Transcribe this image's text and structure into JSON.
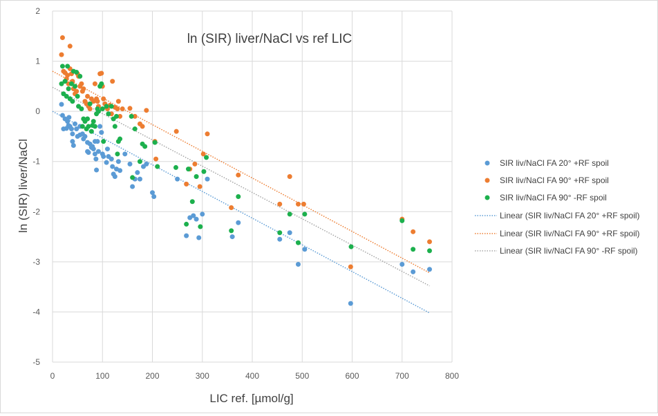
{
  "chart_data": {
    "type": "scatter",
    "title": "ln (SIR) liver/NaCl vs ref LIC",
    "xlabel": "LIC ref. [µmol/g]",
    "ylabel": "ln (SIR) liver/NaCl",
    "xlim": [
      0,
      800
    ],
    "ylim": [
      -5,
      2
    ],
    "x_ticks": [
      "0",
      "100",
      "200",
      "300",
      "400",
      "500",
      "600",
      "700",
      "800"
    ],
    "y_ticks": [
      "2",
      "1",
      "0",
      "-1",
      "-2",
      "-3",
      "-4",
      "-5"
    ],
    "grid": true,
    "legend_position": "right",
    "series": [
      {
        "name": "SIR liv/NaCl FA 20° +RF spoil",
        "color": "#5b9bd5",
        "points": [
          [
            18,
            0.14
          ],
          [
            20,
            -0.08
          ],
          [
            22,
            -0.35
          ],
          [
            25,
            -0.15
          ],
          [
            28,
            -0.34
          ],
          [
            30,
            -0.2
          ],
          [
            32,
            -0.28
          ],
          [
            33,
            -0.12
          ],
          [
            35,
            -0.3
          ],
          [
            38,
            -0.35
          ],
          [
            40,
            -0.45
          ],
          [
            40,
            -0.6
          ],
          [
            42,
            -0.68
          ],
          [
            45,
            -0.25
          ],
          [
            48,
            -0.35
          ],
          [
            50,
            -0.5
          ],
          [
            55,
            -0.47
          ],
          [
            55,
            -0.3
          ],
          [
            60,
            -0.45
          ],
          [
            62,
            -0.55
          ],
          [
            65,
            -0.5
          ],
          [
            70,
            -0.62
          ],
          [
            70,
            -0.8
          ],
          [
            72,
            -0.82
          ],
          [
            75,
            -0.65
          ],
          [
            78,
            -0.72
          ],
          [
            80,
            -0.7
          ],
          [
            82,
            -0.75
          ],
          [
            85,
            -0.6
          ],
          [
            85,
            -0.85
          ],
          [
            87,
            -0.95
          ],
          [
            88,
            -1.17
          ],
          [
            90,
            -0.6
          ],
          [
            92,
            -0.8
          ],
          [
            95,
            -0.3
          ],
          [
            98,
            -0.42
          ],
          [
            100,
            -0.85
          ],
          [
            102,
            -0.9
          ],
          [
            108,
            -1.02
          ],
          [
            110,
            -0.75
          ],
          [
            112,
            -0.9
          ],
          [
            118,
            -0.95
          ],
          [
            120,
            -1.1
          ],
          [
            122,
            -1.25
          ],
          [
            125,
            -1.3
          ],
          [
            128,
            -1.15
          ],
          [
            132,
            -1.0
          ],
          [
            135,
            -1.18
          ],
          [
            145,
            -0.85
          ],
          [
            155,
            -1.05
          ],
          [
            160,
            -1.5
          ],
          [
            165,
            -1.35
          ],
          [
            170,
            -1.22
          ],
          [
            175,
            -1.35
          ],
          [
            182,
            -1.1
          ],
          [
            188,
            -1.05
          ],
          [
            200,
            -1.62
          ],
          [
            203,
            -1.7
          ],
          [
            250,
            -1.35
          ],
          [
            268,
            -2.48
          ],
          [
            275,
            -2.12
          ],
          [
            282,
            -2.08
          ],
          [
            288,
            -2.15
          ],
          [
            293,
            -2.52
          ],
          [
            300,
            -2.05
          ],
          [
            310,
            -1.35
          ],
          [
            360,
            -2.5
          ],
          [
            372,
            -2.22
          ],
          [
            455,
            -2.55
          ],
          [
            475,
            -2.42
          ],
          [
            492,
            -3.05
          ],
          [
            505,
            -2.75
          ],
          [
            597,
            -3.83
          ],
          [
            700,
            -3.05
          ],
          [
            722,
            -3.2
          ],
          [
            755,
            -3.15
          ]
        ]
      },
      {
        "name": "SIR liv/NaCl FA 90° +RF spoil",
        "color": "#ed7d31",
        "points": [
          [
            18,
            1.13
          ],
          [
            20,
            1.47
          ],
          [
            22,
            0.8
          ],
          [
            25,
            0.77
          ],
          [
            28,
            0.65
          ],
          [
            30,
            0.72
          ],
          [
            32,
            0.55
          ],
          [
            35,
            1.3
          ],
          [
            35,
            0.85
          ],
          [
            38,
            0.75
          ],
          [
            40,
            0.6
          ],
          [
            42,
            0.45
          ],
          [
            45,
            0.35
          ],
          [
            48,
            0.4
          ],
          [
            50,
            0.75
          ],
          [
            52,
            0.7
          ],
          [
            55,
            0.5
          ],
          [
            58,
            0.55
          ],
          [
            60,
            0.4
          ],
          [
            62,
            0.45
          ],
          [
            65,
            0.2
          ],
          [
            68,
            0.15
          ],
          [
            70,
            0.3
          ],
          [
            72,
            0.1
          ],
          [
            75,
            0.05
          ],
          [
            78,
            0.25
          ],
          [
            82,
            0.2
          ],
          [
            85,
            0.55
          ],
          [
            88,
            0.25
          ],
          [
            90,
            0.2
          ],
          [
            92,
            0.1
          ],
          [
            95,
            0.75
          ],
          [
            98,
            0.76
          ],
          [
            100,
            0.5
          ],
          [
            102,
            0.25
          ],
          [
            105,
            0.15
          ],
          [
            108,
            0.08
          ],
          [
            110,
            0.05
          ],
          [
            115,
            0.12
          ],
          [
            118,
            -0.05
          ],
          [
            120,
            0.6
          ],
          [
            125,
            0.08
          ],
          [
            130,
            0.05
          ],
          [
            132,
            0.2
          ],
          [
            135,
            -0.1
          ],
          [
            140,
            0.05
          ],
          [
            155,
            0.06
          ],
          [
            165,
            -0.1
          ],
          [
            175,
            -0.25
          ],
          [
            180,
            -0.3
          ],
          [
            188,
            0.02
          ],
          [
            205,
            -0.6
          ],
          [
            207,
            -0.95
          ],
          [
            248,
            -0.4
          ],
          [
            268,
            -1.45
          ],
          [
            275,
            -1.15
          ],
          [
            285,
            -1.05
          ],
          [
            295,
            -1.5
          ],
          [
            302,
            -0.85
          ],
          [
            310,
            -0.45
          ],
          [
            358,
            -1.92
          ],
          [
            372,
            -1.27
          ],
          [
            455,
            -1.85
          ],
          [
            475,
            -1.3
          ],
          [
            492,
            -1.85
          ],
          [
            503,
            -1.85
          ],
          [
            597,
            -3.1
          ],
          [
            700,
            -2.15
          ],
          [
            722,
            -2.4
          ],
          [
            755,
            -2.6
          ]
        ]
      },
      {
        "name": "SIR liv/NaCl FA 90° -RF spoil",
        "color": "#1cb04d",
        "points": [
          [
            18,
            0.55
          ],
          [
            20,
            0.9
          ],
          [
            22,
            0.35
          ],
          [
            25,
            0.6
          ],
          [
            28,
            0.3
          ],
          [
            30,
            0.9
          ],
          [
            32,
            0.45
          ],
          [
            35,
            0.25
          ],
          [
            38,
            0.55
          ],
          [
            40,
            0.2
          ],
          [
            42,
            0.8
          ],
          [
            45,
            0.5
          ],
          [
            48,
            0.78
          ],
          [
            50,
            0.3
          ],
          [
            52,
            0.1
          ],
          [
            55,
            0.7
          ],
          [
            58,
            0.05
          ],
          [
            60,
            -0.3
          ],
          [
            62,
            -0.15
          ],
          [
            65,
            -0.2
          ],
          [
            68,
            -0.35
          ],
          [
            70,
            -0.15
          ],
          [
            72,
            -0.3
          ],
          [
            75,
            0.15
          ],
          [
            78,
            -0.4
          ],
          [
            80,
            -0.28
          ],
          [
            82,
            -0.2
          ],
          [
            85,
            -0.3
          ],
          [
            88,
            -0.05
          ],
          [
            90,
            0.05
          ],
          [
            92,
            0.0
          ],
          [
            95,
            0.5
          ],
          [
            98,
            0.55
          ],
          [
            100,
            0.05
          ],
          [
            102,
            -0.6
          ],
          [
            108,
            0.1
          ],
          [
            112,
            -0.05
          ],
          [
            118,
            0.1
          ],
          [
            122,
            -0.15
          ],
          [
            125,
            -0.3
          ],
          [
            128,
            -0.1
          ],
          [
            130,
            -0.85
          ],
          [
            132,
            -0.6
          ],
          [
            135,
            -0.55
          ],
          [
            158,
            -0.1
          ],
          [
            160,
            -1.32
          ],
          [
            165,
            -0.35
          ],
          [
            175,
            -1.0
          ],
          [
            180,
            -0.65
          ],
          [
            185,
            -0.7
          ],
          [
            205,
            -0.62
          ],
          [
            210,
            -1.1
          ],
          [
            247,
            -1.12
          ],
          [
            268,
            -2.25
          ],
          [
            272,
            -1.15
          ],
          [
            280,
            -1.8
          ],
          [
            288,
            -1.3
          ],
          [
            296,
            -2.3
          ],
          [
            303,
            -1.2
          ],
          [
            308,
            -0.92
          ],
          [
            358,
            -2.38
          ],
          [
            372,
            -1.7
          ],
          [
            455,
            -2.42
          ],
          [
            475,
            -2.05
          ],
          [
            492,
            -2.62
          ],
          [
            505,
            -2.05
          ],
          [
            598,
            -2.7
          ],
          [
            700,
            -2.18
          ],
          [
            722,
            -2.75
          ],
          [
            755,
            -2.78
          ]
        ]
      }
    ],
    "trendlines": [
      {
        "name": "Linear (SIR liv/NaCl FA 20° +RF spoil)",
        "color": "#5b9bd5",
        "from": [
          0,
          0.0
        ],
        "to": [
          755,
          -4.02
        ]
      },
      {
        "name": "Linear (SIR liv/NaCl FA 90° +RF spoil)",
        "color": "#ed7d31",
        "from": [
          0,
          0.8
        ],
        "to": [
          755,
          -3.22
        ]
      },
      {
        "name": "Linear (SIR liv/NaCl FA 90° -RF spoil)",
        "color": "#a5a5a5",
        "from": [
          0,
          0.48
        ],
        "to": [
          755,
          -3.48
        ]
      }
    ]
  }
}
